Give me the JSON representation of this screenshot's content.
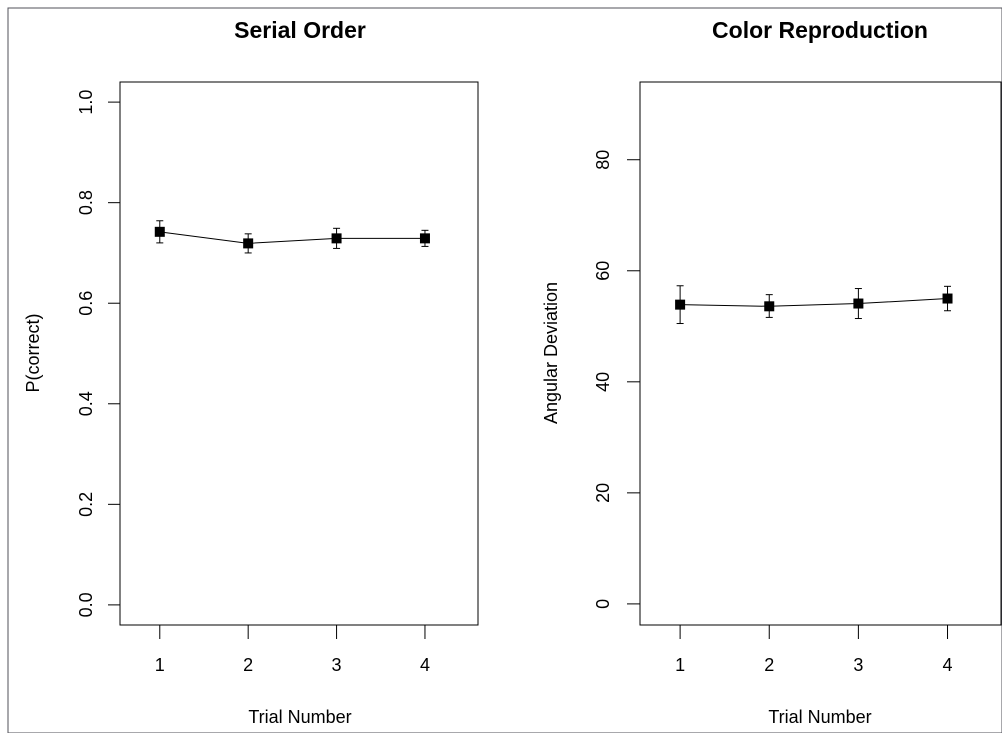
{
  "chart_data": [
    {
      "type": "line",
      "title": "Serial Order",
      "xlabel": "Trial Number",
      "ylabel": "P(correct)",
      "x": [
        1,
        2,
        3,
        4
      ],
      "y": [
        0.742,
        0.719,
        0.729,
        0.729
      ],
      "error_low": [
        0.72,
        0.7,
        0.709,
        0.713
      ],
      "error_high": [
        0.764,
        0.738,
        0.749,
        0.745
      ],
      "xticks": [
        "1",
        "2",
        "3",
        "4"
      ],
      "yticks": [
        "0.0",
        "0.2",
        "0.4",
        "0.6",
        "0.8",
        "1.0"
      ],
      "xlim": [
        0.55,
        4.6
      ],
      "ylim": [
        -0.04,
        1.04
      ],
      "grid": false,
      "marker": "filled-square",
      "error_bars": true
    },
    {
      "type": "line",
      "title": "Color Reproduction",
      "xlabel": "Trial Number",
      "ylabel": "Angular Deviation",
      "x": [
        1,
        2,
        3,
        4
      ],
      "y": [
        53.9,
        53.6,
        54.1,
        55.0
      ],
      "error_low": [
        50.5,
        51.6,
        51.4,
        52.8
      ],
      "error_high": [
        57.3,
        55.7,
        56.8,
        57.2
      ],
      "xticks": [
        "1",
        "2",
        "3",
        "4"
      ],
      "yticks": [
        "0",
        "20",
        "40",
        "60",
        "80"
      ],
      "xlim": [
        0.55,
        4.6
      ],
      "ylim": [
        -3.8,
        94
      ],
      "grid": false,
      "marker": "filled-square",
      "error_bars": true
    }
  ]
}
